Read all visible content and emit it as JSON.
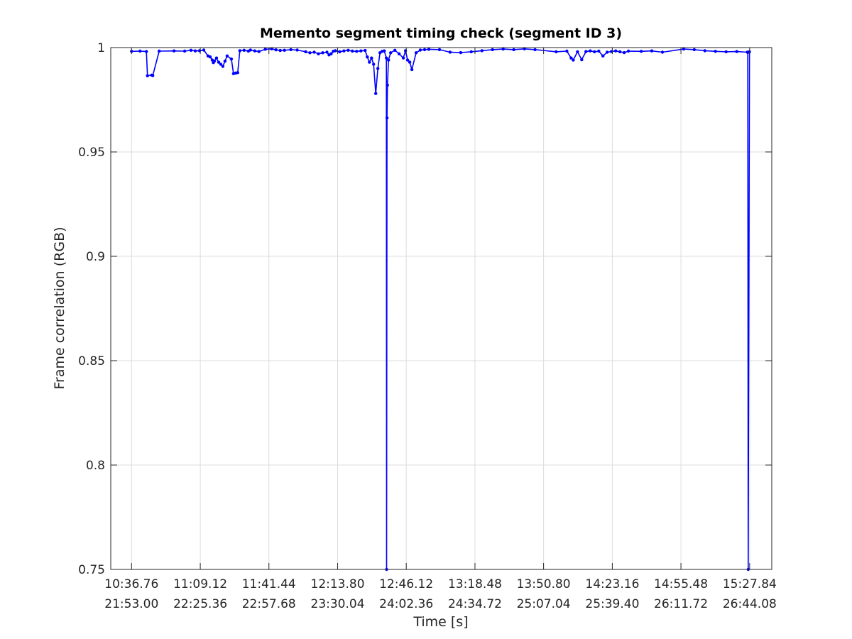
{
  "chart_data": {
    "type": "line",
    "title": "Memento segment timing check (segment ID 3)",
    "xlabel": "Time [s]",
    "ylabel": "Frame correlation (RGB)",
    "ylim": [
      0.75,
      1
    ],
    "y_ticks": [
      0.75,
      0.8,
      0.85,
      0.9,
      0.95,
      1
    ],
    "y_tick_labels": [
      "0.75",
      "0.8",
      "0.85",
      "0.9",
      "0.95",
      "1"
    ],
    "x_ticks": [
      0,
      32.36,
      64.68,
      97.04,
      129.36,
      161.72,
      194.04,
      226.4,
      258.72,
      291.08
    ],
    "x_tick_labels_top": [
      "10:36.76",
      "11:09.12",
      "11:41.44",
      "12:13.80",
      "12:46.12",
      "13:18.48",
      "13:50.80",
      "14:23.16",
      "14:55.48",
      "15:27.84"
    ],
    "x_tick_labels_bottom": [
      "21:53.00",
      "22:25.36",
      "22:57.68",
      "23:30.04",
      "24:02.36",
      "24:34.72",
      "25:07.04",
      "25:39.40",
      "26:11.72",
      "26:44.08"
    ],
    "xlim": [
      -9.8,
      301.5
    ],
    "grid": true,
    "line_color": "#0000ff",
    "series": [
      {
        "x": [
          0,
          4,
          7,
          7.5,
          9.5,
          10,
          13,
          20,
          25,
          28,
          30,
          32,
          34,
          36,
          37,
          38,
          38.5,
          39,
          40,
          41,
          42,
          43,
          44,
          45,
          47,
          48,
          49,
          50,
          51,
          53,
          55,
          56,
          58,
          60,
          63,
          66,
          68,
          70,
          72,
          75,
          78,
          82,
          84,
          86,
          88,
          90,
          92,
          93,
          94,
          95,
          96,
          98,
          100,
          102,
          104,
          106,
          108,
          110,
          111,
          112,
          113,
          114,
          115,
          116,
          117,
          118,
          119,
          120,
          120.1,
          120.3,
          120.5,
          121,
          122,
          124,
          126,
          128,
          129,
          130,
          131,
          132,
          134,
          136,
          138,
          140,
          145,
          150,
          155,
          160,
          165,
          170,
          175,
          180,
          185,
          190,
          200,
          205,
          207,
          208,
          210,
          212,
          214,
          216,
          218,
          220,
          222,
          224,
          226,
          228,
          230,
          232,
          234,
          240,
          245,
          250,
          260,
          265,
          270,
          275,
          280,
          285,
          290,
          290.2,
          290.4,
          291
        ],
        "y": [
          0.9982,
          0.9983,
          0.9981,
          0.9865,
          0.9868,
          0.9866,
          0.9983,
          0.9984,
          0.9983,
          0.9987,
          0.9984,
          0.9985,
          0.9988,
          0.996,
          0.9955,
          0.994,
          0.9928,
          0.9935,
          0.995,
          0.993,
          0.992,
          0.991,
          0.9935,
          0.996,
          0.9945,
          0.9875,
          0.9878,
          0.988,
          0.9985,
          0.9987,
          0.9983,
          0.9988,
          0.9984,
          0.9981,
          0.9992,
          0.9994,
          0.9989,
          0.9986,
          0.9987,
          0.999,
          0.9988,
          0.998,
          0.9975,
          0.9978,
          0.997,
          0.9975,
          0.9978,
          0.9965,
          0.997,
          0.9982,
          0.9985,
          0.998,
          0.9984,
          0.9987,
          0.9983,
          0.9982,
          0.9984,
          0.9986,
          0.9955,
          0.993,
          0.995,
          0.992,
          0.978,
          0.99,
          0.9975,
          0.9982,
          0.9984,
          0.995,
          0.75,
          0.9663,
          0.982,
          0.994,
          0.9975,
          0.9987,
          0.997,
          0.995,
          0.9985,
          0.994,
          0.993,
          0.9895,
          0.9975,
          0.9988,
          0.999,
          0.9992,
          0.999,
          0.9978,
          0.9976,
          0.998,
          0.9985,
          0.999,
          0.9993,
          0.999,
          0.9994,
          0.999,
          0.998,
          0.9983,
          0.995,
          0.994,
          0.998,
          0.9942,
          0.9981,
          0.9984,
          0.998,
          0.9983,
          0.996,
          0.9978,
          0.9981,
          0.9984,
          0.998,
          0.9976,
          0.9983,
          0.9982,
          0.9984,
          0.9978,
          0.9993,
          0.999,
          0.9985,
          0.9982,
          0.998,
          0.9981,
          0.9978,
          0.9977,
          0.75,
          0.998
        ]
      }
    ]
  }
}
